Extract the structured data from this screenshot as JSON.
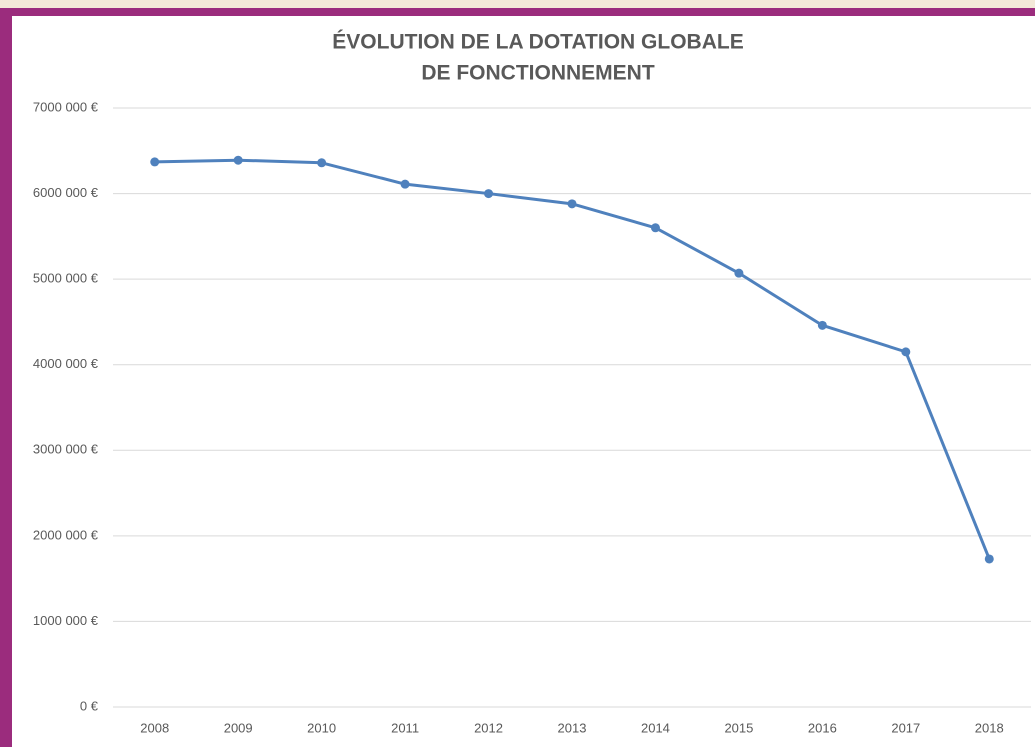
{
  "chart_data": {
    "type": "line",
    "title": [
      "ÉVOLUTION DE LA DOTATION GLOBALE",
      "DE FONCTIONNEMENT"
    ],
    "categories": [
      "2008",
      "2009",
      "2010",
      "2011",
      "2012",
      "2013",
      "2014",
      "2015",
      "2016",
      "2017",
      "2018"
    ],
    "series": [
      {
        "color": "#4f81bd",
        "values": [
          6370000,
          6390000,
          6360000,
          6110000,
          6000000,
          5880000,
          5600000,
          5070000,
          4460000,
          4150000,
          1730000
        ]
      }
    ],
    "ylim": [
      0,
      7000000
    ],
    "yticks": [
      {
        "value": 0,
        "label": "0 €"
      },
      {
        "value": 1000000,
        "label": "1000 000 €"
      },
      {
        "value": 2000000,
        "label": "2000 000 €"
      },
      {
        "value": 3000000,
        "label": "3000 000 €"
      },
      {
        "value": 4000000,
        "label": "4000 000 €"
      },
      {
        "value": 5000000,
        "label": "5000 000 €"
      },
      {
        "value": 6000000,
        "label": "6000 000 €"
      },
      {
        "value": 7000000,
        "label": "7000 000 €"
      }
    ],
    "grid": true
  }
}
